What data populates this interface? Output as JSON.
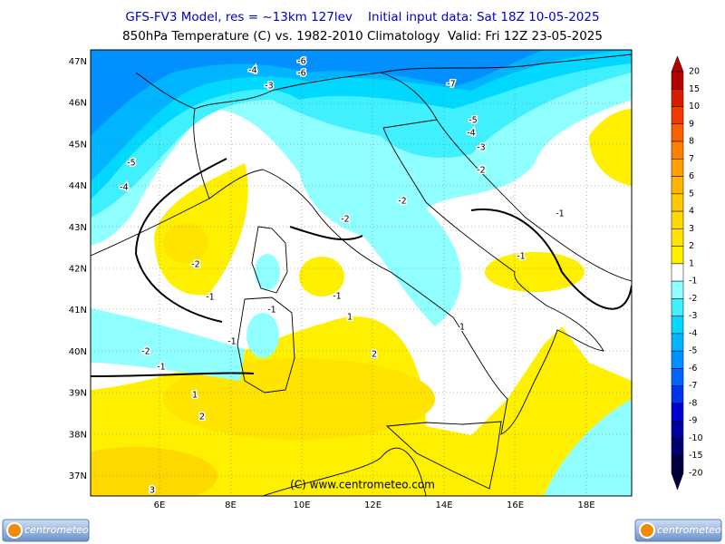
{
  "header": {
    "line1": "GFS-FV3 Model, res = ~13km 127lev    Initial input data: Sat 18Z 10-05-2025",
    "line2": "850hPa Temperature (C) vs. 1982-2010 Climatology  Valid: Fri 12Z 23-05-2025"
  },
  "map": {
    "lat_labels": [
      "47N",
      "46N",
      "45N",
      "44N",
      "43N",
      "42N",
      "41N",
      "40N",
      "39N",
      "38N",
      "37N"
    ],
    "lon_labels": [
      "6E",
      "8E",
      "10E",
      "12E",
      "14E",
      "16E",
      "18E"
    ],
    "contour_labels": [
      -6,
      -6,
      -4,
      -3,
      -7,
      -5,
      -4,
      -3,
      -2,
      -5,
      -4,
      -2,
      -2,
      -1,
      -1,
      -2,
      -1,
      -1,
      1,
      -1,
      -1,
      -2,
      -1,
      2,
      1,
      2,
      1,
      3
    ],
    "copyright": "(C) www.centrometeo.com"
  },
  "colorbar": {
    "labels": [
      20,
      15,
      10,
      9,
      8,
      7,
      6,
      5,
      4,
      3,
      2,
      1,
      -1,
      -2,
      -3,
      -4,
      -5,
      -6,
      -7,
      -8,
      -9,
      -10,
      -15,
      -20
    ],
    "colors": [
      "#b40000",
      "#d81c00",
      "#f03c00",
      "#f86000",
      "#ff8000",
      "#ffa000",
      "#ffb400",
      "#ffc800",
      "#ffd800",
      "#ffe400",
      "#fff000",
      "#ffffff",
      "#90ffff",
      "#40f0ff",
      "#00d8ff",
      "#00b4ff",
      "#0090ff",
      "#0064ff",
      "#0032f0",
      "#0000d0",
      "#0000a0",
      "#000070",
      "#000040"
    ]
  },
  "footer": {
    "logo_left": "centrometeo",
    "logo_right": "centrometeo"
  }
}
